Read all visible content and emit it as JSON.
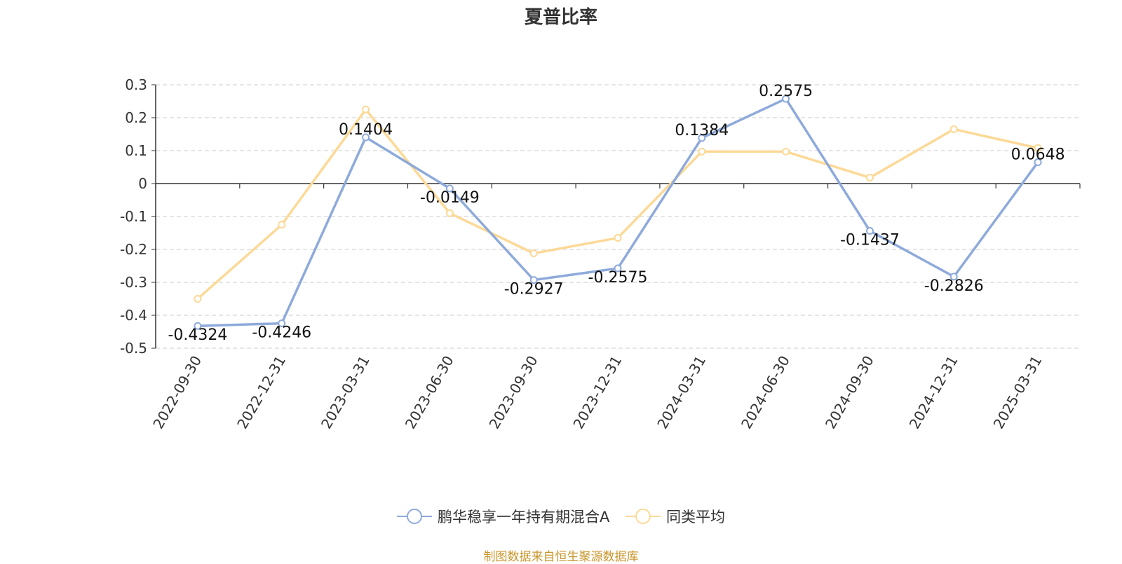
{
  "chart_data": {
    "type": "line",
    "title": "夏普比率",
    "categories": [
      "2022-09-30",
      "2022-12-31",
      "2023-03-31",
      "2023-06-30",
      "2023-09-30",
      "2023-12-31",
      "2024-03-31",
      "2024-06-30",
      "2024-09-30",
      "2024-12-31",
      "2025-03-31"
    ],
    "series": [
      {
        "name": "鹏华稳享一年持有期混合A",
        "color": "#8eaadb",
        "values": [
          -0.4324,
          -0.4246,
          0.1404,
          -0.0149,
          -0.2927,
          -0.2575,
          0.1384,
          0.2575,
          -0.1437,
          -0.2826,
          0.0648
        ],
        "show_labels": true
      },
      {
        "name": "同类平均",
        "color": "#fcd997",
        "values": [
          -0.35,
          -0.125,
          0.225,
          -0.09,
          -0.212,
          -0.165,
          0.097,
          0.097,
          0.018,
          0.165,
          0.108
        ],
        "show_labels": false
      }
    ],
    "ylim": [
      -0.5,
      0.3
    ],
    "yticks": [
      "0.3",
      "0.2",
      "0.1",
      "0",
      "-0.1",
      "-0.2",
      "-0.3",
      "-0.4",
      "-0.5"
    ],
    "grid": true,
    "legend_position": "bottom"
  },
  "source_text": "制图数据来自恒生聚源数据库"
}
